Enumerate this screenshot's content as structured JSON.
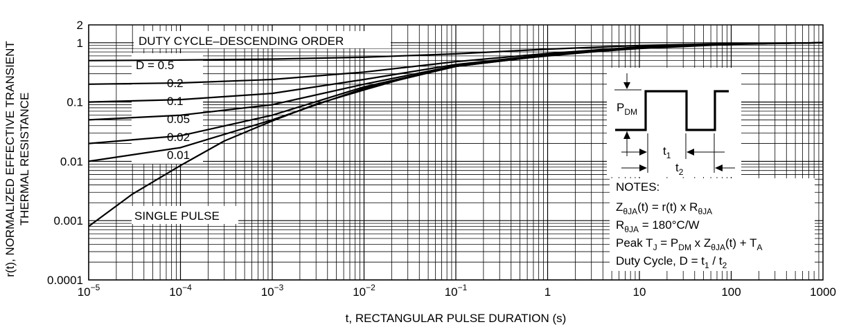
{
  "chart_data": {
    "type": "line",
    "xscale": "log",
    "yscale": "log",
    "xlim": [
      1e-05,
      1000
    ],
    "ylim": [
      0.0001,
      2
    ],
    "xlabel": "t, RECTANGULAR PULSE DURATION (s)",
    "ylabel_line1": "r(t), NORMALIZED EFFECTIVE TRANSIENT",
    "ylabel_line2": "THERMAL RESISTANCE",
    "grid": true,
    "x_ticks": [
      {
        "value": 1e-05,
        "base": "10",
        "exp": "−5"
      },
      {
        "value": 0.0001,
        "base": "10",
        "exp": "−4"
      },
      {
        "value": 0.001,
        "base": "10",
        "exp": "−3"
      },
      {
        "value": 0.01,
        "base": "10",
        "exp": "−2"
      },
      {
        "value": 0.1,
        "base": "10",
        "exp": "−1"
      },
      {
        "value": 1,
        "base": "1",
        "exp": ""
      },
      {
        "value": 10,
        "base": "10",
        "exp": ""
      },
      {
        "value": 100,
        "base": "100",
        "exp": ""
      },
      {
        "value": 1000,
        "base": "1000",
        "exp": ""
      }
    ],
    "y_ticks": [
      {
        "value": 2,
        "label": "2"
      },
      {
        "value": 1,
        "label": "1"
      },
      {
        "value": 0.1,
        "label": "0.1"
      },
      {
        "value": 0.01,
        "label": "0.01"
      },
      {
        "value": 0.001,
        "label": "0.001"
      },
      {
        "value": 0.0001,
        "label": "0.0001"
      }
    ],
    "legend_title": "DUTY CYCLE–DESCENDING ORDER",
    "legend_labels": [
      "D = 0.5",
      "0.2",
      "0.1",
      "0.05",
      "0.02",
      "0.01"
    ],
    "single_pulse_label": "SINGLE PULSE",
    "series": [
      {
        "name": "D = 0.5",
        "x": [
          1e-05,
          0.0001,
          0.001,
          0.01,
          0.1,
          1,
          10,
          100,
          1000
        ],
        "y": [
          0.5,
          0.51,
          0.53,
          0.57,
          0.65,
          0.78,
          0.9,
          0.97,
          1.0
        ]
      },
      {
        "name": "0.2",
        "x": [
          1e-05,
          0.0001,
          0.001,
          0.01,
          0.1,
          1,
          10,
          100,
          1000
        ],
        "y": [
          0.2,
          0.21,
          0.24,
          0.32,
          0.48,
          0.66,
          0.85,
          0.96,
          1.0
        ]
      },
      {
        "name": "0.1",
        "x": [
          1e-05,
          0.0001,
          0.001,
          0.01,
          0.1,
          1,
          10,
          100,
          1000
        ],
        "y": [
          0.1,
          0.11,
          0.14,
          0.24,
          0.43,
          0.63,
          0.83,
          0.95,
          1.0
        ]
      },
      {
        "name": "0.05",
        "x": [
          1e-05,
          0.0001,
          0.001,
          0.01,
          0.1,
          1,
          10,
          100,
          1000
        ],
        "y": [
          0.05,
          0.06,
          0.09,
          0.2,
          0.41,
          0.62,
          0.82,
          0.95,
          1.0
        ]
      },
      {
        "name": "0.02",
        "x": [
          1e-05,
          0.0001,
          0.001,
          0.01,
          0.1,
          1,
          10,
          100,
          1000
        ],
        "y": [
          0.02,
          0.027,
          0.06,
          0.18,
          0.4,
          0.61,
          0.82,
          0.95,
          1.0
        ]
      },
      {
        "name": "0.01",
        "x": [
          1e-05,
          0.0001,
          0.001,
          0.01,
          0.1,
          1,
          10,
          100,
          1000
        ],
        "y": [
          0.01,
          0.017,
          0.05,
          0.17,
          0.4,
          0.61,
          0.82,
          0.95,
          1.0
        ]
      },
      {
        "name": "SINGLE PULSE",
        "x": [
          1e-05,
          3e-05,
          0.0001,
          0.0003,
          0.001,
          0.003,
          0.01,
          0.03,
          0.1,
          0.3,
          1,
          3,
          10,
          100,
          1000
        ],
        "y": [
          0.0008,
          0.0028,
          0.0085,
          0.022,
          0.048,
          0.092,
          0.16,
          0.26,
          0.4,
          0.5,
          0.6,
          0.7,
          0.8,
          0.94,
          1.0
        ]
      }
    ]
  },
  "notes": {
    "title": "NOTES:",
    "line1": {
      "a": "Z",
      "b": "θJA",
      "c": "(t) = r(t) x R",
      "d": "θJA"
    },
    "line2": {
      "a": "R",
      "b": "θJA",
      "c": " = 180°C/W"
    },
    "line3": {
      "a": "Peak T",
      "b": "J",
      "c": " = P",
      "d": "DM",
      "e": " x Z",
      "f": "θJA",
      "g": "(t) + T",
      "h": "A"
    },
    "line4": {
      "a": "Duty Cycle, D = t",
      "b": "1",
      "c": " / t",
      "d": "2"
    }
  },
  "waveform": {
    "pdm": "P",
    "pdm_sub": "DM",
    "t1": "t",
    "t1_sub": "1",
    "t2": "t",
    "t2_sub": "2"
  }
}
